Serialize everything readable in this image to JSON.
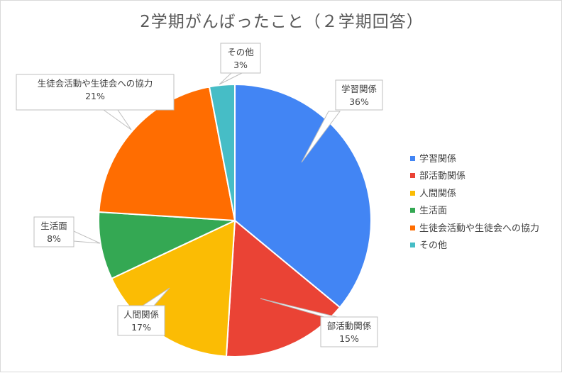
{
  "chart_data": {
    "type": "pie",
    "title": "2学期がんばったこと（２学期回答）",
    "categories": [
      "学習関係",
      "部活動関係",
      "人間関係",
      "生活面",
      "生徒会活動や生徒会への協力",
      "その他"
    ],
    "values": [
      36,
      15,
      17,
      8,
      21,
      3
    ],
    "value_labels": [
      "36%",
      "15%",
      "17%",
      "8%",
      "21%",
      "3%"
    ],
    "colors": [
      "#4285F4",
      "#EA4335",
      "#FBBC04",
      "#34A853",
      "#FF6D01",
      "#46BDC6"
    ],
    "legend_position": "right",
    "start_angle_deg": 0,
    "direction": "clockwise"
  }
}
